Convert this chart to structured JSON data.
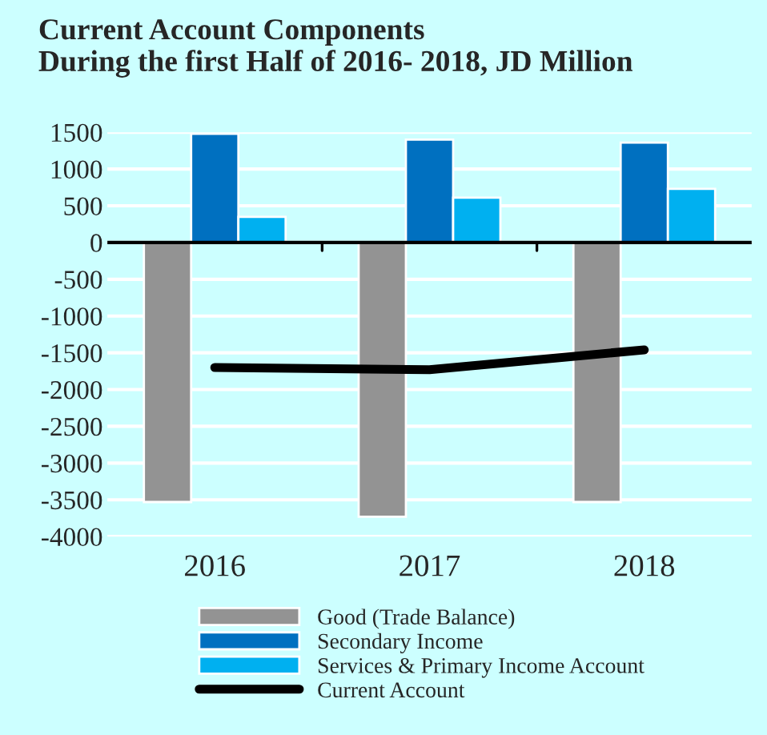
{
  "chart_data": {
    "type": "bar",
    "title": "Current Account Components\nDuring the first Half of 2016- 2018, JD Million",
    "categories": [
      "2016",
      "2017",
      "2018"
    ],
    "series": [
      {
        "name": "Good (Trade Balance)",
        "color": "#939393",
        "values": [
          -3530,
          -3730,
          -3530
        ]
      },
      {
        "name": "Secondary Income",
        "color": "#0070c0",
        "values": [
          1480,
          1400,
          1360
        ]
      },
      {
        "name": "Services & Primary Income Account",
        "color": "#00b0f0",
        "values": [
          350,
          610,
          730
        ]
      },
      {
        "name": "Current Account",
        "color": "#000000",
        "type": "line",
        "values": [
          -1700,
          -1730,
          -1460
        ]
      }
    ],
    "ylim": [
      -4000,
      1500
    ],
    "yticks": [
      -4000,
      -3500,
      -3000,
      -2500,
      -2000,
      -1500,
      -1000,
      -500,
      0,
      500,
      1000,
      1500
    ],
    "grid": "y",
    "legend": "bottom",
    "line_style": "solid",
    "marker": "none"
  }
}
